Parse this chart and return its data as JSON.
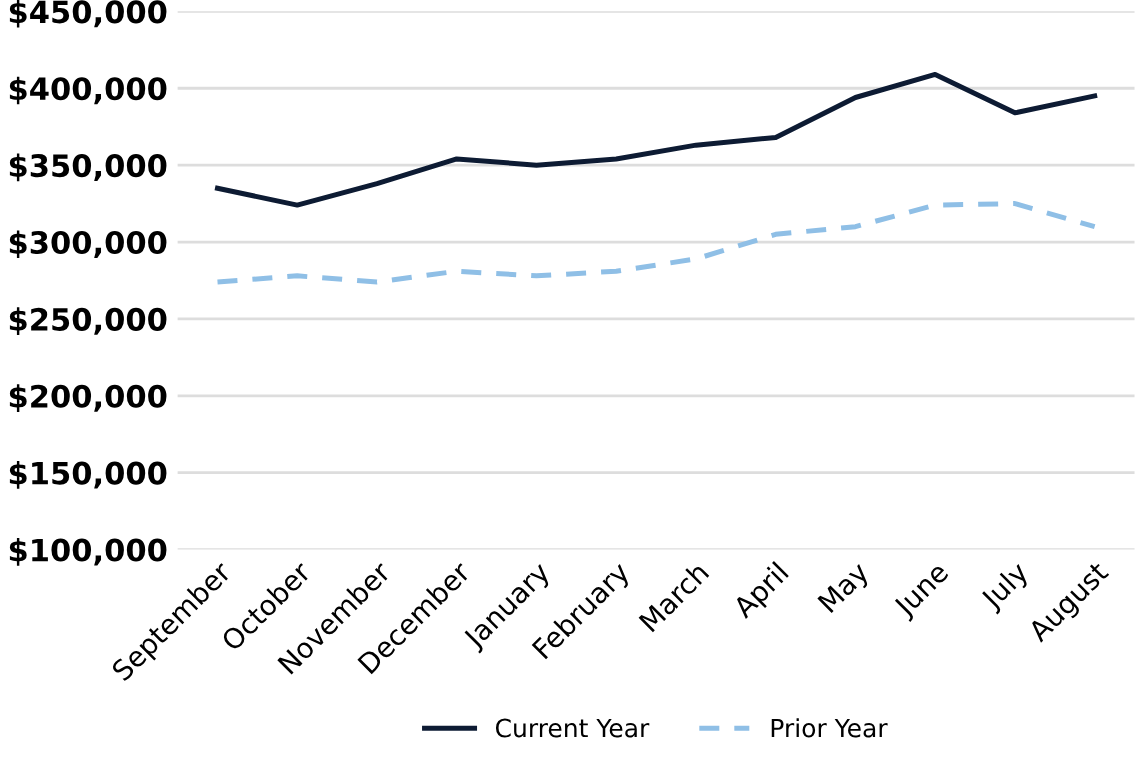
{
  "chart_data": {
    "type": "line",
    "categories": [
      "September",
      "October",
      "November",
      "December",
      "January",
      "February",
      "March",
      "April",
      "May",
      "June",
      "July",
      "August"
    ],
    "series": [
      {
        "name": "Current Year",
        "color": "#0d1b33",
        "line_style": "solid",
        "values": [
          335000,
          324000,
          338000,
          354000,
          350000,
          354000,
          363000,
          368000,
          394000,
          409000,
          384000,
          395000
        ]
      },
      {
        "name": "Prior Year",
        "color": "#8fbfe6",
        "line_style": "dashed",
        "values": [
          274000,
          278000,
          274000,
          281000,
          278000,
          281000,
          289000,
          305000,
          310000,
          324000,
          325000,
          310000
        ]
      }
    ],
    "ylim": [
      100000,
      450000
    ],
    "yticks": [
      {
        "value": 100000,
        "label": "$100,000"
      },
      {
        "value": 150000,
        "label": "$150,000"
      },
      {
        "value": 200000,
        "label": "$200,000"
      },
      {
        "value": 250000,
        "label": "$250,000"
      },
      {
        "value": 300000,
        "label": "$300,000"
      },
      {
        "value": 350000,
        "label": "$350,000"
      },
      {
        "value": 400000,
        "label": "$400,000"
      },
      {
        "value": 450000,
        "label": "$450,000"
      }
    ],
    "grid": "y",
    "legend": "bottom",
    "marker": "none"
  }
}
